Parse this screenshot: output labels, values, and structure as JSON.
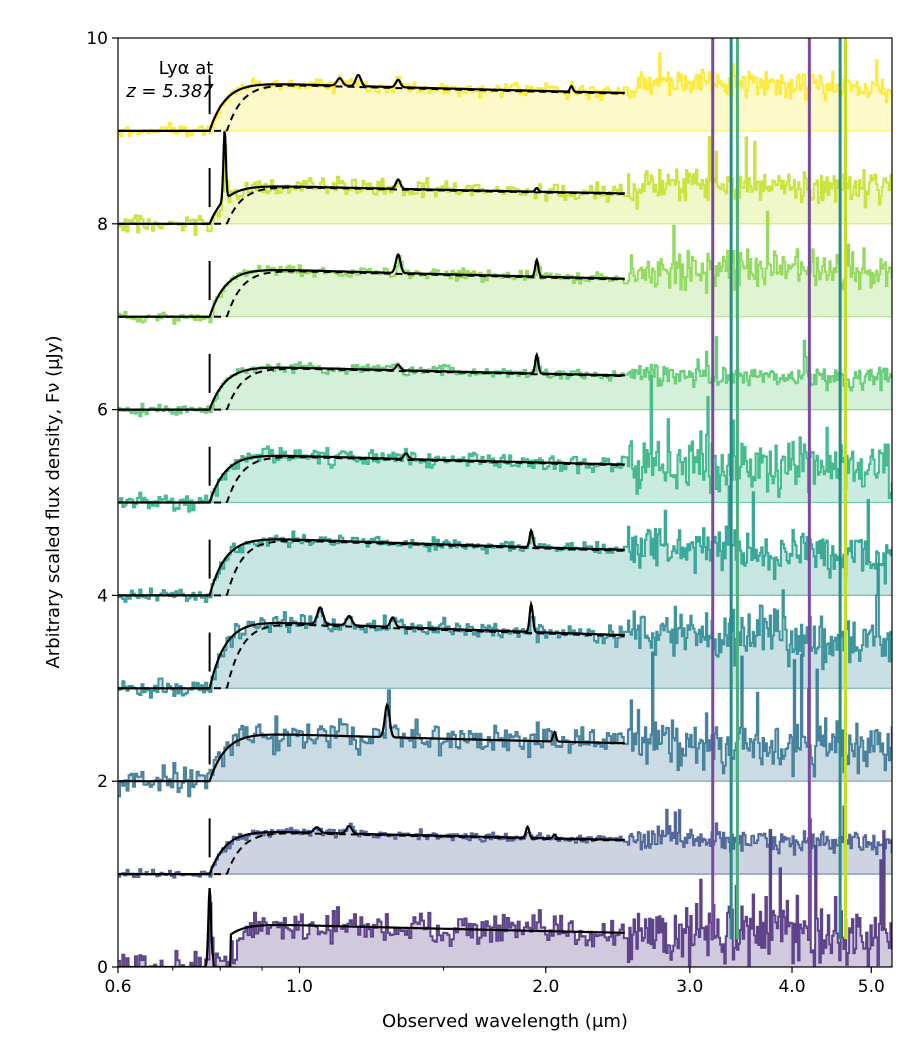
{
  "chart_data": {
    "type": "line",
    "xlabel": "Observed wavelength (μm)",
    "ylabel": "Arbitrary scaled flux density, Fν (μJy)",
    "xscale": "log",
    "xlim": [
      0.6,
      5.3
    ],
    "ylim": [
      0,
      10
    ],
    "x_ticks": [
      {
        "value": 0.6,
        "label": "0.6"
      },
      {
        "value": 1.0,
        "label": "1.0"
      },
      {
        "value": 2.0,
        "label": "2.0"
      },
      {
        "value": 3.0,
        "label": "3.0"
      },
      {
        "value": 4.0,
        "label": "4.0"
      },
      {
        "value": 5.0,
        "label": "5.0"
      }
    ],
    "y_ticks": [
      0,
      2,
      4,
      6,
      8,
      10
    ],
    "annotation": {
      "line1": "Lyα at",
      "line2": "z = 5.387",
      "x": 0.7765
    },
    "lya_wavelength": 0.7765,
    "model_end": 2.5,
    "prism_start": 2.52,
    "series": [
      {
        "offset": 9,
        "color": "#fde725",
        "amp": 0.5,
        "noise": 0.06,
        "prism_noise": 0.12,
        "model_lines": [
          [
            1.12,
            0.08
          ],
          [
            1.18,
            0.12
          ],
          [
            1.32,
            0.08
          ],
          [
            2.15,
            0.06
          ]
        ],
        "dashed": true,
        "dla": false
      },
      {
        "offset": 8,
        "color": "#c2df23",
        "amp": 0.4,
        "noise": 0.08,
        "prism_noise": 0.15,
        "model_lines": [
          [
            0.81,
            0.75
          ],
          [
            1.32,
            0.1
          ],
          [
            1.95,
            0.04
          ]
        ],
        "dashed": true,
        "dla": false
      },
      {
        "offset": 7,
        "color": "#86d549",
        "amp": 0.5,
        "noise": 0.05,
        "prism_noise": 0.18,
        "model_lines": [
          [
            1.32,
            0.2
          ],
          [
            1.95,
            0.18
          ]
        ],
        "dashed": true,
        "dla": false
      },
      {
        "offset": 6,
        "color": "#52c569",
        "amp": 0.45,
        "noise": 0.05,
        "prism_noise": 0.1,
        "model_lines": [
          [
            1.32,
            0.06
          ],
          [
            1.95,
            0.2
          ]
        ],
        "dashed": true,
        "dla": false
      },
      {
        "offset": 5,
        "color": "#2ab07f",
        "amp": 0.5,
        "noise": 0.08,
        "prism_noise": 0.25,
        "model_lines": [
          [
            1.35,
            0.06
          ]
        ],
        "dashed": true,
        "dla": false
      },
      {
        "offset": 4,
        "color": "#1e9b8a",
        "amp": 0.6,
        "noise": 0.06,
        "prism_noise": 0.2,
        "model_lines": [
          [
            1.92,
            0.18
          ]
        ],
        "dashed": true,
        "dla": false
      },
      {
        "offset": 3,
        "color": "#25858e",
        "amp": 0.7,
        "noise": 0.08,
        "prism_noise": 0.22,
        "model_lines": [
          [
            1.06,
            0.18
          ],
          [
            1.15,
            0.1
          ],
          [
            1.3,
            0.1
          ],
          [
            1.92,
            0.3
          ]
        ],
        "dashed": true,
        "dla": false
      },
      {
        "offset": 2,
        "color": "#2d708e",
        "amp": 0.5,
        "noise": 0.15,
        "prism_noise": 0.25,
        "model_lines": [
          [
            1.28,
            0.35
          ],
          [
            2.05,
            0.1
          ]
        ],
        "dashed": false,
        "dla": false
      },
      {
        "offset": 1,
        "color": "#3b518b",
        "amp": 0.45,
        "noise": 0.04,
        "prism_noise": 0.1,
        "model_lines": [
          [
            1.05,
            0.06
          ],
          [
            1.15,
            0.08
          ],
          [
            1.9,
            0.12
          ],
          [
            2.05,
            0.04
          ]
        ],
        "dashed": true,
        "dla": false
      },
      {
        "offset": 0,
        "color": "#482878",
        "amp": 0.45,
        "noise": 0.15,
        "prism_noise": 0.3,
        "model_lines": [
          [
            0.7765,
            0.85
          ]
        ],
        "dashed": false,
        "dla": true
      }
    ],
    "bright_lines": [
      {
        "x": 3.2,
        "color": "#7b4a9e"
      },
      {
        "x": 3.37,
        "color": "#2a8a8a"
      },
      {
        "x": 3.43,
        "color": "#48b07a"
      },
      {
        "x": 4.2,
        "color": "#7b4a9e"
      },
      {
        "x": 4.58,
        "color": "#2a8a8a"
      },
      {
        "x": 4.65,
        "color": "#c2df23"
      }
    ]
  }
}
